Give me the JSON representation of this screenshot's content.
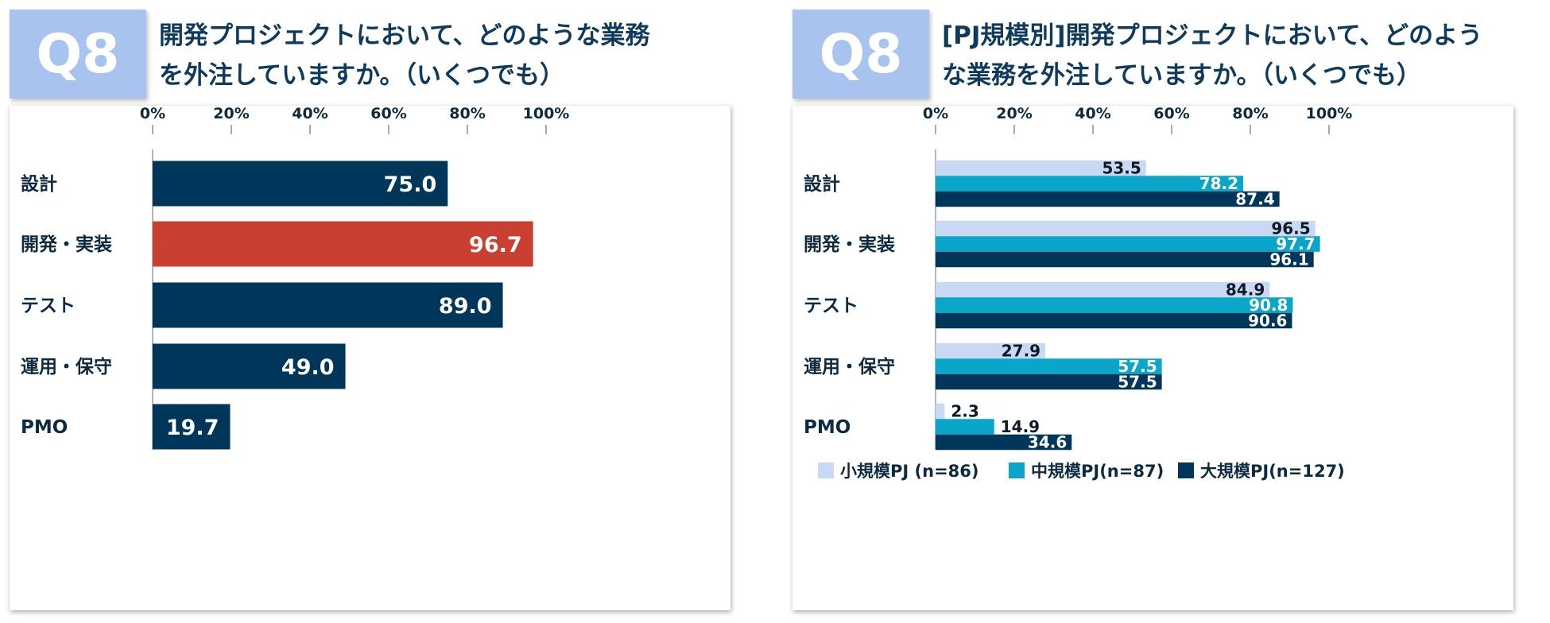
{
  "left": {
    "badge": "Q8",
    "title": "開発プロジェクトにおいて、どのような業務\nを外注していますか。（いくつでも）"
  },
  "right": {
    "badge": "Q8",
    "title": "[PJ規模別]開発プロジェクトにおいて、どのよう\nな業務を外注していますか。（いくつでも）"
  },
  "colors": {
    "primary": "#003659",
    "highlight": "#c94033",
    "small": "#c9d9f3",
    "medium": "#0aa6c9",
    "large": "#003659",
    "badge": "#a8c4ee",
    "title": "#0e3a5d"
  },
  "chart_data": [
    {
      "type": "bar",
      "orientation": "horizontal",
      "categories": [
        "設計",
        "開発・実装",
        "テスト",
        "運用・保守",
        "PMO"
      ],
      "values": [
        75.0,
        96.7,
        89.0,
        49.0,
        19.7
      ],
      "value_labels": [
        "75.0",
        "96.7",
        "89.0",
        "49.0",
        "19.7"
      ],
      "highlight_index": 1,
      "xlim": [
        0,
        100
      ],
      "xticks": [
        "0%",
        "20%",
        "40%",
        "60%",
        "80%",
        "100%"
      ],
      "tick_values": [
        0,
        20,
        40,
        60,
        80,
        100
      ]
    },
    {
      "type": "bar",
      "orientation": "horizontal",
      "categories": [
        "設計",
        "開発・実装",
        "テスト",
        "運用・保守",
        "PMO"
      ],
      "series": [
        {
          "name": "小規模PJ (n=86)",
          "values": [
            53.5,
            96.5,
            84.9,
            27.9,
            2.3
          ],
          "labels": [
            "53.5",
            "96.5",
            "84.9",
            "27.9",
            "2.3"
          ]
        },
        {
          "name": "中規模PJ(n=87)",
          "values": [
            78.2,
            97.7,
            90.8,
            57.5,
            14.9
          ],
          "labels": [
            "78.2",
            "97.7",
            "90.8",
            "57.5",
            "14.9"
          ]
        },
        {
          "name": "大規模PJ(n=127)",
          "values": [
            87.4,
            96.1,
            90.6,
            57.5,
            34.6
          ],
          "labels": [
            "87.4",
            "96.1",
            "90.6",
            "57.5",
            "34.6"
          ]
        }
      ],
      "xlim": [
        0,
        100
      ],
      "xticks": [
        "0%",
        "20%",
        "40%",
        "60%",
        "80%",
        "100%"
      ],
      "tick_values": [
        0,
        20,
        40,
        60,
        80,
        100
      ],
      "legend_position": "bottom"
    }
  ]
}
